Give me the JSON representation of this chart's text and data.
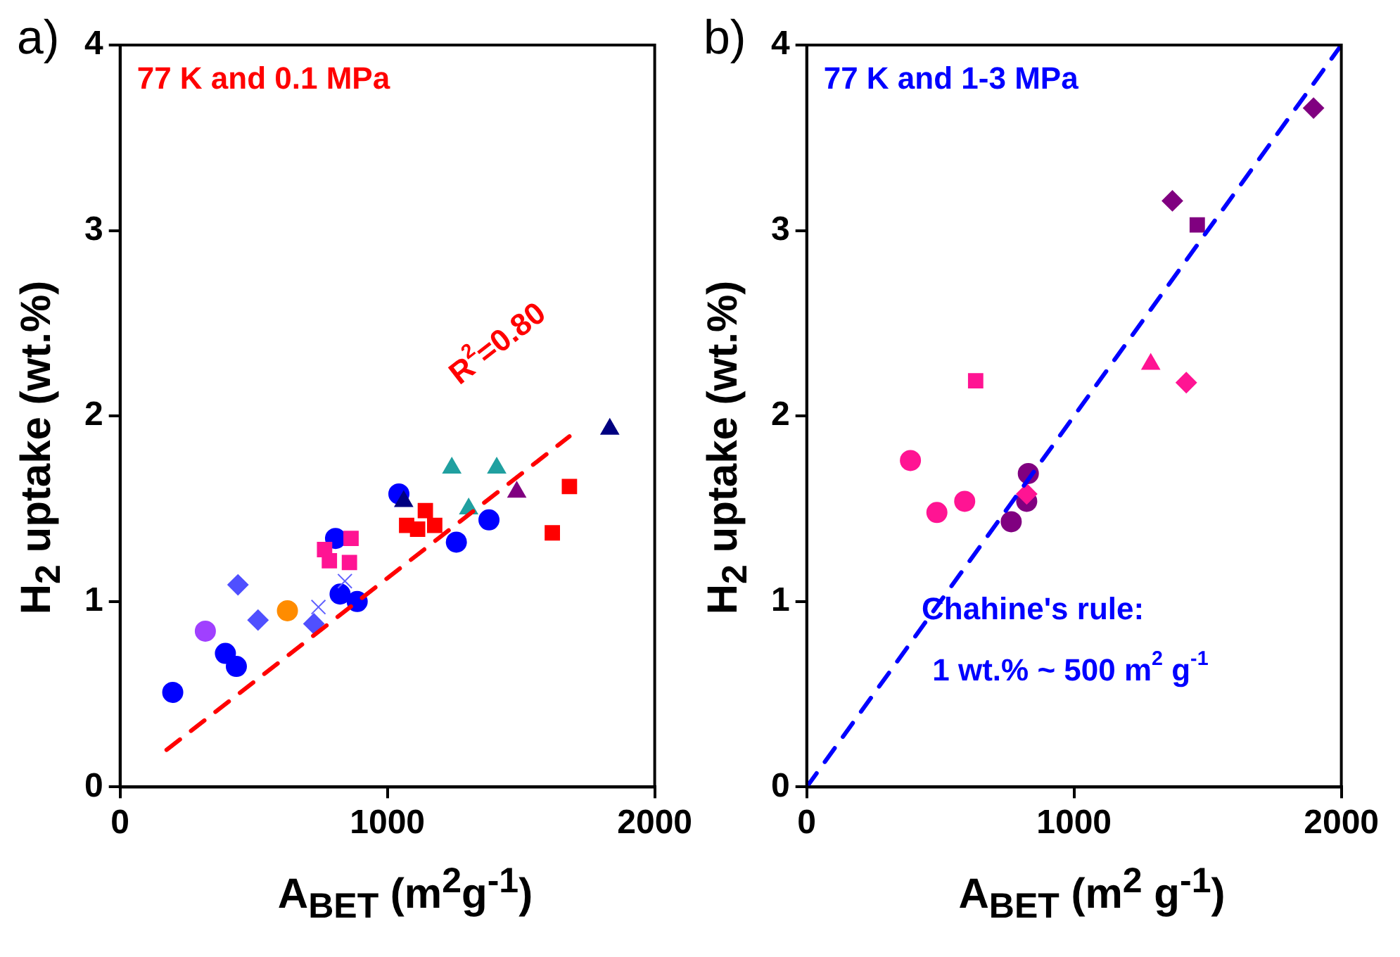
{
  "chart_data": [
    {
      "type": "scatter",
      "xlabel": "A$_{BET}$ (m$^{2}$g$^{-1}$)",
      "ylabel": "H$_{2}$ uptake (wt.%)",
      "xlim": [
        0,
        2000
      ],
      "ylim": [
        0,
        4
      ],
      "xticks": [
        0,
        1000,
        2000
      ],
      "yticks": [
        0,
        1,
        2,
        3,
        4
      ],
      "annotations": [
        "a)",
        "77 K and 0.1 MPa",
        "R$^{2}$=0.80"
      ],
      "series": [
        {
          "color": "#0000ff",
          "marker": "circle",
          "x": [
            197,
            394,
            435,
            823,
            887,
            1043,
            806,
            1258,
            1380
          ],
          "values": [
            0.51,
            0.72,
            0.65,
            1.04,
            1.0,
            1.58,
            1.34,
            1.32,
            1.44
          ]
        },
        {
          "color": "#ff0000",
          "marker": "square",
          "x": [
            1072,
            1142,
            1177,
            1113,
            1681,
            1617
          ],
          "values": [
            1.41,
            1.49,
            1.41,
            1.39,
            1.62,
            1.37
          ]
        },
        {
          "color": "#000080",
          "marker": "triangle",
          "x": [
            1832,
            1061
          ],
          "values": [
            1.93,
            1.54
          ]
        },
        {
          "color": "#20a0a0",
          "marker": "triangle",
          "x": [
            1241,
            1409,
            1304
          ],
          "values": [
            1.72,
            1.72,
            1.5
          ]
        },
        {
          "color": "#800080",
          "marker": "triangle",
          "x": [
            1484
          ],
          "values": [
            1.59
          ]
        },
        {
          "color": "#ff1493",
          "marker": "square",
          "x": [
            864,
            765,
            783,
            858
          ],
          "values": [
            1.34,
            1.28,
            1.22,
            1.21
          ]
        },
        {
          "color": "#6060ff",
          "marker": "cross",
          "x": [
            841,
            742
          ],
          "values": [
            1.11,
            0.97
          ]
        },
        {
          "color": "#5050ff",
          "marker": "diamond",
          "x": [
            441,
            516,
            725
          ],
          "values": [
            1.09,
            0.9,
            0.88
          ]
        },
        {
          "color": "#ff8c00",
          "marker": "circle",
          "x": [
            626
          ],
          "values": [
            0.95
          ]
        },
        {
          "color": "#a040ff",
          "marker": "circle",
          "x": [
            319
          ],
          "values": [
            0.84
          ]
        },
        {
          "type": "line",
          "color": "#ff0000",
          "line_style": "dashed",
          "x": [
            174,
            1681
          ],
          "values": [
            0.2,
            1.89
          ]
        }
      ]
    },
    {
      "type": "scatter",
      "xlabel": "A$_{BET}$ (m$^{2}$ g$^{-1}$)",
      "ylabel": "H$_{2}$ uptake (wt.%)",
      "xlim": [
        0,
        2000
      ],
      "ylim": [
        0,
        4
      ],
      "xticks": [
        0,
        1000,
        2000
      ],
      "yticks": [
        0,
        1,
        2,
        3,
        4
      ],
      "annotations": [
        "b)",
        "77 K and 1-3 MPa",
        "Chahine's rule:",
        "1 wt.% ~ 500 m$^{2}$ g$^{-1}$"
      ],
      "series": [
        {
          "color": "#800080",
          "marker": "diamond",
          "x": [
            1896,
            1368
          ],
          "values": [
            3.66,
            3.16
          ]
        },
        {
          "color": "#800080",
          "marker": "square",
          "x": [
            1461
          ],
          "values": [
            3.03
          ]
        },
        {
          "color": "#800080",
          "marker": "circle",
          "x": [
            829,
            823,
            765
          ],
          "values": [
            1.69,
            1.54,
            1.43
          ]
        },
        {
          "color": "#ff1493",
          "marker": "square",
          "x": [
            632
          ],
          "values": [
            2.19
          ]
        },
        {
          "color": "#ff1493",
          "marker": "triangle",
          "x": [
            1287
          ],
          "values": [
            2.28
          ]
        },
        {
          "color": "#ff1493",
          "marker": "diamond",
          "x": [
            1420,
            823
          ],
          "values": [
            2.18,
            1.58
          ]
        },
        {
          "color": "#ff1493",
          "marker": "circle",
          "x": [
            388,
            487,
            591
          ],
          "values": [
            1.76,
            1.48,
            1.54
          ]
        },
        {
          "type": "line",
          "color": "#0000ff",
          "line_style": "dashed",
          "x": [
            0,
            2000
          ],
          "values": [
            0,
            4
          ]
        }
      ]
    }
  ]
}
